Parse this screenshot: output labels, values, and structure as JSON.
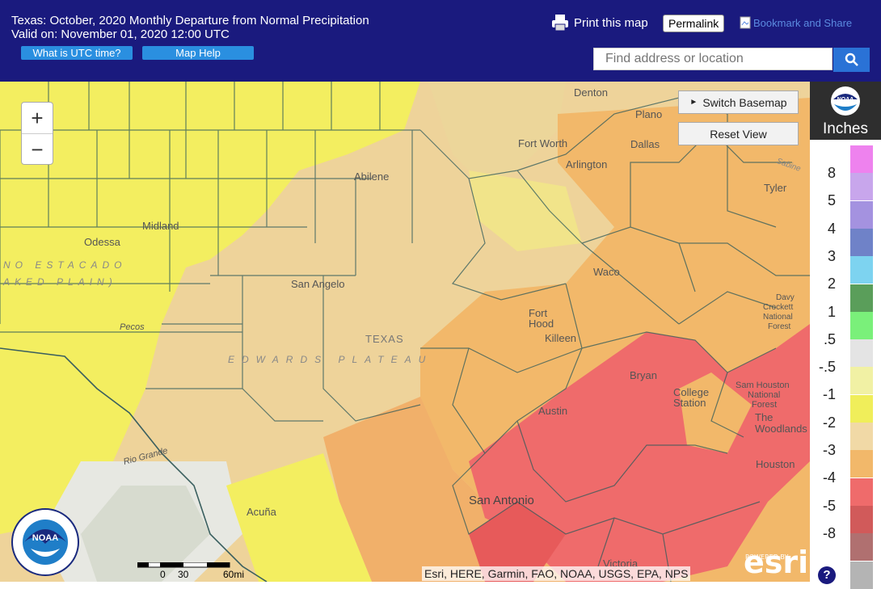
{
  "header": {
    "title_line1": "Texas: October, 2020 Monthly Departure from Normal Precipitation",
    "title_line2": "Valid on: November 01, 2020 12:00 UTC",
    "utc_button": "What is UTC time?",
    "help_button": "Map Help",
    "print_label": "Print this map",
    "permalink_label": "Permalink",
    "bookmark_label": "Bookmark and Share",
    "search_placeholder": "Find address or location"
  },
  "map_controls": {
    "zoom_in": "+",
    "zoom_out": "−",
    "switch_basemap": "Switch Basemap",
    "reset_view": "Reset View"
  },
  "legend": {
    "unit": "Inches",
    "entries": [
      {
        "label": "8",
        "color": "#ee82ee"
      },
      {
        "label": "5",
        "color": "#c8a6ec"
      },
      {
        "label": "4",
        "color": "#a492e0"
      },
      {
        "label": "3",
        "color": "#6f82c8"
      },
      {
        "label": "2",
        "color": "#7dd3f0"
      },
      {
        "label": "1",
        "color": "#5a9e5a"
      },
      {
        "label": ".5",
        "color": "#7af07a"
      },
      {
        "label": "-.5",
        "color": "#e4e4e4"
      },
      {
        "label": "-1",
        "color": "#f1f1a4"
      },
      {
        "label": "-2",
        "color": "#f0ee5a"
      },
      {
        "label": "-3",
        "color": "#f1d9a6"
      },
      {
        "label": "-4",
        "color": "#f2b86a"
      },
      {
        "label": "-5",
        "color": "#ef6b6b"
      },
      {
        "label": "-8",
        "color": "#d15a5a"
      },
      {
        "label": "",
        "color": "#b07070"
      },
      {
        "label": "",
        "color": "#b4b4b4"
      }
    ]
  },
  "places": {
    "denton": "Denton",
    "plano": "Plano",
    "fort_worth": "Fort Worth",
    "dallas": "Dallas",
    "arlington": "Arlington",
    "abilene": "Abilene",
    "tyler": "Tyler",
    "midland": "Midland",
    "odessa": "Odessa",
    "waco": "Waco",
    "san_angelo": "San Angelo",
    "fort_hood_1": "Fort",
    "fort_hood_2": "Hood",
    "killeen": "Killeen",
    "texas": "TEXAS",
    "bryan": "Bryan",
    "college_station_1": "College",
    "college_station_2": "Station",
    "austin": "Austin",
    "the_woodlands_1": "The",
    "the_woodlands_2": "Woodlands",
    "houston": "Houston",
    "san_antonio": "San Antonio",
    "acuna": "Acuña",
    "victoria": "Victoria",
    "rio_grande": "Rio Grande",
    "pecos": "Pecos",
    "sabine": "Sabine",
    "davy_crockett_1": "Davy",
    "davy_crockett_2": "Crockett",
    "davy_crockett_3": "National",
    "davy_crockett_4": "Forest",
    "sam_houston_1": "Sam Houston",
    "sam_houston_2": "National",
    "sam_houston_3": "Forest",
    "llano_1": "NO  ESTACADO",
    "llano_2": "AKED  PLAIN)",
    "edwards": "EDWARDS  PLATEAU"
  },
  "attribution": "Esri, HERE, Garmin, FAO, NOAA, USGS, EPA, NPS",
  "esri_small": "POWERED BY",
  "esri_logo": "esri",
  "scale": {
    "zero": "0",
    "mid": "30",
    "end": "60mi"
  },
  "noaa_logo_text": "NOAA",
  "help_icon": "?",
  "colors": {
    "header": "#1a1a7e",
    "button": "#2a8fe0",
    "search_button": "#2a72d6"
  }
}
